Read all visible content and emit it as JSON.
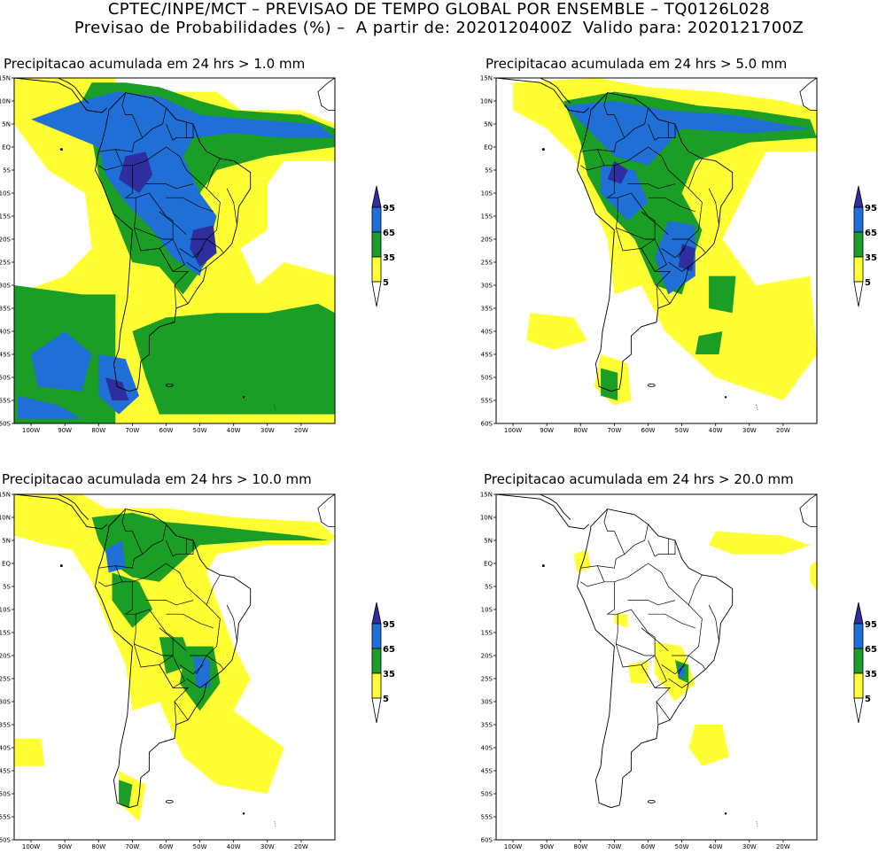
{
  "header": {
    "line1": "CPTEC/INPE/MCT – PREVISAO DE TEMPO GLOBAL POR ENSEMBLE – TQ0126L028",
    "line2": "Previsao de Probabilidades (%) –  A partir de: 2020120400Z  Valido para: 2020121700Z"
  },
  "axes": {
    "lat_labels": [
      "15N",
      "10N",
      "5N",
      "EQ",
      "5S",
      "10S",
      "15S",
      "20S",
      "25S",
      "30S",
      "35S",
      "40S",
      "45S",
      "50S",
      "55S",
      "60S"
    ],
    "lon_labels": [
      "100W",
      "90W",
      "80W",
      "70W",
      "60W",
      "50W",
      "40W",
      "30W",
      "20W"
    ]
  },
  "colorbar": {
    "levels": [
      "95",
      "65",
      "35",
      "5"
    ],
    "colors": [
      "#2e2e9e",
      "#1f6fd6",
      "#1b9e26",
      "#ffff33"
    ]
  },
  "panels": [
    {
      "id": "p1",
      "title": "Precipitacao acumulada em 24 hrs > 1.0 mm"
    },
    {
      "id": "p2",
      "title": "Precipitacao acumulada em 24 hrs > 5.0 mm"
    },
    {
      "id": "p3",
      "title": "Precipitacao acumulada em 24 hrs > 10.0 mm"
    },
    {
      "id": "p4",
      "title": "Precipitacao acumulada em 24 hrs > 20.0 mm"
    }
  ]
}
